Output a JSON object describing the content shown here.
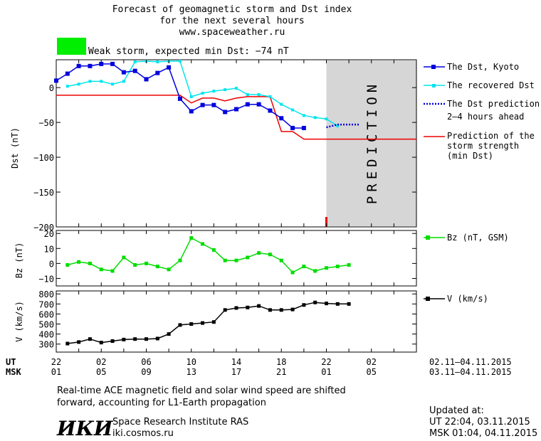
{
  "title": {
    "line1": "Forecast of geomagnetic storm and Dst index",
    "line2": "for the next several hours",
    "line3": "www.spaceweather.ru"
  },
  "storm": {
    "label": "Weak storm, expected min Dst: −74 nT",
    "color": "#00ee00"
  },
  "legend": {
    "dst_kyoto": "The Dst, Kyoto",
    "dst_recovered": "The recovered Dst",
    "dst_prediction_1": "The Dst prediction",
    "dst_prediction_2": "2–4 hours ahead",
    "storm_strength_1": "Prediction of the",
    "storm_strength_2": "storm strength",
    "storm_strength_3": "(min Dst)",
    "bz": "Bz (nT, GSM)",
    "v": "V (km/s)"
  },
  "prediction_label": "PREDICTION",
  "time_axis": {
    "ut_label": "UT",
    "msk_label": "MSK",
    "ut_ticks": [
      "22",
      "02",
      "06",
      "10",
      "14",
      "18",
      "22",
      "02"
    ],
    "msk_ticks": [
      "01",
      "05",
      "09",
      "13",
      "17",
      "21",
      "01",
      "05"
    ],
    "ut_range": "02.11–04.11.2015",
    "msk_range": "03.11–04.11.2015"
  },
  "footer": {
    "note_1": "Real-time ACE magnetic field and solar wind speed are shifted",
    "note_2": "forward, accounting for L1-Earth propagation",
    "logo": "ИКИ",
    "institute": "Space Research Institute RAS",
    "site": "iki.cosmos.ru",
    "updated_label": "Updated at:",
    "updated_ut": "UT   22:04, 03.11.2015",
    "updated_msk": "MSK 01:04, 04.11.2015"
  },
  "chart_data": [
    {
      "type": "line",
      "title": "Dst",
      "ylabel": "Dst (nT)",
      "ylim": [
        -200,
        40
      ],
      "yticks": [
        0,
        -50,
        -100,
        -150,
        -200
      ],
      "xlim": [
        0,
        32
      ],
      "x_unit": "hours since 22 UT 02.11.2015",
      "prediction_start_x": 24,
      "series": [
        {
          "name": "The Dst, Kyoto",
          "color": "#0000dd",
          "x": [
            0,
            1,
            2,
            3,
            4,
            5,
            6,
            7,
            8,
            9,
            10,
            11,
            12,
            13,
            14,
            15,
            16,
            17,
            18,
            19,
            20,
            21,
            22
          ],
          "y": [
            10,
            20,
            31,
            31,
            34,
            34,
            22,
            24,
            12,
            21,
            29,
            -16,
            -34,
            -25,
            -25,
            -35,
            -31,
            -24,
            -24,
            -33,
            -44,
            -58,
            -58
          ]
        },
        {
          "name": "The recovered Dst",
          "color": "#00e5ee",
          "x": [
            1,
            2,
            3,
            4,
            5,
            6,
            7,
            8,
            9,
            10,
            11,
            12,
            13,
            14,
            15,
            16,
            17,
            18,
            19,
            20,
            21,
            22,
            23,
            24,
            25
          ],
          "y": [
            2,
            5,
            9,
            9,
            5,
            9,
            37,
            38,
            37,
            38,
            38,
            -13,
            -8,
            -5,
            -3,
            -1,
            -10,
            -10,
            -13,
            -24,
            -32,
            -40,
            -43,
            -45,
            -55
          ]
        },
        {
          "name": "The Dst prediction 2–4 hours ahead",
          "color": "#0000dd",
          "x": [
            24,
            25,
            26,
            27
          ],
          "y": [
            -57,
            -53,
            -53,
            -53
          ]
        },
        {
          "name": "Prediction of the storm strength (min Dst)",
          "color": "#ee0000",
          "x": [
            0,
            11,
            12,
            13,
            14,
            15,
            16,
            17,
            18,
            19,
            20,
            21,
            22,
            23,
            24,
            32
          ],
          "y": [
            -11,
            -11,
            -22,
            -15,
            -15,
            -19,
            -15,
            -13,
            -13,
            -13,
            -63,
            -63,
            -74,
            -74,
            -74,
            -74
          ]
        }
      ],
      "marker_x": 24
    },
    {
      "type": "line",
      "ylabel": "Bz (nT)",
      "ylim": [
        -15,
        22
      ],
      "yticks": [
        20,
        10,
        0,
        -10
      ],
      "xlim": [
        0,
        32
      ],
      "series": [
        {
          "name": "Bz (nT, GSM)",
          "color": "#00dd00",
          "x": [
            1,
            2,
            3,
            4,
            5,
            6,
            7,
            8,
            9,
            10,
            11,
            12,
            13,
            14,
            15,
            16,
            17,
            18,
            19,
            20,
            21,
            22,
            23,
            24,
            25,
            26
          ],
          "y": [
            -1,
            1,
            0,
            -4,
            -5,
            4,
            -1,
            0,
            -2,
            -4,
            2,
            17,
            13,
            9,
            2,
            2,
            4,
            7,
            6,
            2,
            -6,
            -2,
            -5,
            -3,
            -2,
            -1
          ]
        }
      ]
    },
    {
      "type": "line",
      "ylabel": "V (km/s)",
      "ylim": [
        220,
        830
      ],
      "yticks": [
        800,
        700,
        600,
        500,
        400,
        300
      ],
      "xlim": [
        0,
        32
      ],
      "series": [
        {
          "name": "V (km/s)",
          "color": "#000000",
          "x": [
            1,
            2,
            3,
            4,
            5,
            6,
            7,
            8,
            9,
            10,
            11,
            12,
            13,
            14,
            15,
            16,
            17,
            18,
            19,
            20,
            21,
            22,
            23,
            24,
            25,
            26
          ],
          "y": [
            305,
            320,
            350,
            315,
            330,
            345,
            350,
            350,
            355,
            400,
            490,
            500,
            510,
            520,
            640,
            660,
            665,
            680,
            640,
            640,
            645,
            690,
            715,
            705,
            700,
            700
          ]
        }
      ]
    }
  ]
}
